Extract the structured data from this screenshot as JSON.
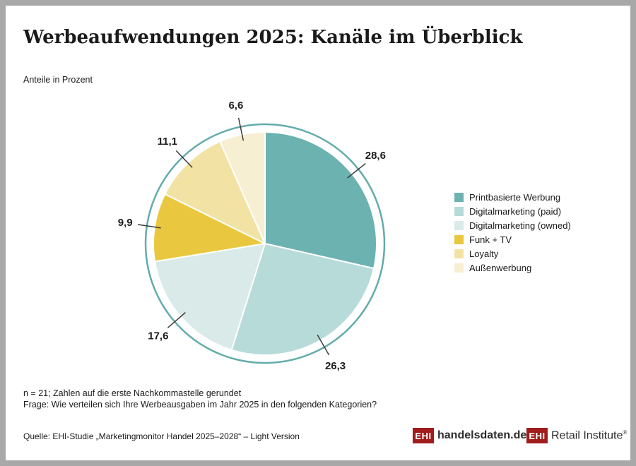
{
  "header": {
    "title": "Werbeaufwendungen 2025: Kanäle im Überblick",
    "subtitle": "Anteile in Prozent"
  },
  "chart_data": {
    "type": "pie",
    "title": "Werbeaufwendungen 2025: Kanäle im Überblick",
    "unit": "Prozent",
    "start_angle_deg": 0,
    "direction": "clockwise",
    "legend_position": "right",
    "ring_color": "#62acaa",
    "slice_divider_color": "#ffffff",
    "leader_line_color": "#3c3c3c",
    "slices": [
      {
        "label": "Printbasierte Werbung",
        "value": 28.6,
        "display": "28,6",
        "color": "#6cb2b0"
      },
      {
        "label": "Digitalmarketing (paid)",
        "value": 26.3,
        "display": "26,3",
        "color": "#b7dbd9"
      },
      {
        "label": "Digitalmarketing (owned)",
        "value": 17.6,
        "display": "17,6",
        "color": "#d9eae9"
      },
      {
        "label": "Funk + TV",
        "value": 9.9,
        "display": "9,9",
        "color": "#e9c83f"
      },
      {
        "label": "Loyalty",
        "value": 11.1,
        "display": "11,1",
        "color": "#f2e3a4"
      },
      {
        "label": "Außenwerbung",
        "value": 6.6,
        "display": "6,6",
        "color": "#f7efd2"
      }
    ]
  },
  "footnotes": {
    "line1": "n = 21; Zahlen auf die erste Nachkommastelle gerundet",
    "line2": "Frage: Wie verteilen sich Ihre Werbeausgaben im Jahr 2025 in den folgenden Kategorien?"
  },
  "source": "Quelle: EHI-Studie „Marketingmonitor Handel 2025–2028“ – Light Version",
  "logos": {
    "handelsdaten": {
      "badge": "EHI",
      "text": "handelsdaten.de"
    },
    "retail": {
      "badge": "EHI",
      "text": "Retail Institute",
      "reg": "®"
    }
  }
}
